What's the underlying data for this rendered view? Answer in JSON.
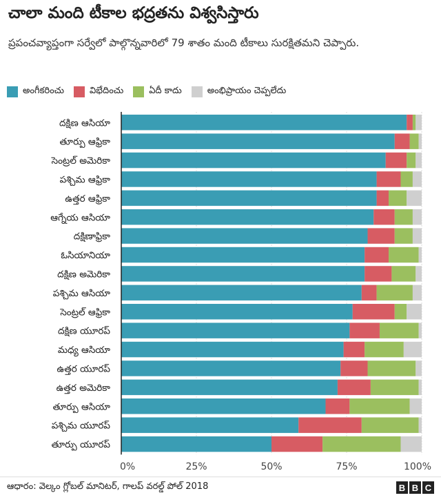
{
  "header": {
    "title": "చాలా మంది టీకాల భద్రతను విశ్వసిస్తారు",
    "subtitle": "ప్రపంచవ్యాప్తంగా సర్వేలో పాల్గొన్నవారిలో 79 శాతం మంది టీకాలు సురక్షితమని చెప్పారు."
  },
  "footer": {
    "source": "ఆధారం: వెల్కం గ్లోబల్ మానిటర్, గాలప్ వరల్డ్ పోల్ 2018",
    "logo_letters": [
      "B",
      "B",
      "C"
    ]
  },
  "chart_data": {
    "type": "bar",
    "orientation": "horizontal",
    "stacked": true,
    "x_ticks": [
      "0%",
      "25%",
      "50%",
      "75%",
      "100%"
    ],
    "xlim": [
      0,
      100
    ],
    "grid": true,
    "legend_position": "top",
    "categories": [
      "దక్షిణ ఆసియా",
      "తూర్పు ఆఫ్రికా",
      "సెంట్రల్ అమెరికా",
      "పశ్చిమ ఆఫ్రికా",
      "ఉత్తర ఆఫ్రికా",
      "ఆగ్నేయ ఆసియా",
      "దక్షిణాఫ్రికా",
      "ఓసియానియా",
      "దక్షిణ అమెరికా",
      "పశ్చిమ ఆసియా",
      "సెంట్రల్ ఆఫ్రికా",
      "దక్షిణ యూరప్",
      "మధ్య ఆసియా",
      "ఉత్తర యూరప్",
      "ఉత్తర అమెరికా",
      "తూర్పు ఆసియా",
      "పశ్చిమ యూరప్",
      "తూర్పు యూరప్"
    ],
    "series": [
      {
        "name": "అంగీకరించు",
        "color": "#3a9db4",
        "values": [
          95,
          91,
          88,
          85,
          85,
          84,
          82,
          81,
          81,
          80,
          77,
          76,
          74,
          73,
          72,
          68,
          59,
          50
        ]
      },
      {
        "name": "విభేదించు",
        "color": "#d75c63",
        "values": [
          2,
          5,
          7,
          8,
          4,
          7,
          9,
          8,
          9,
          5,
          14,
          10,
          7,
          9,
          11,
          8,
          21,
          17
        ]
      },
      {
        "name": "ఏదీ కాదు",
        "color": "#9bbf5f",
        "values": [
          1,
          3,
          3,
          4,
          6,
          6,
          6,
          10,
          8,
          12,
          4,
          13,
          13,
          16,
          16,
          20,
          19,
          26
        ]
      },
      {
        "name": "అంభిప్రాయం చెప్పలేదు",
        "color": "#cfcfcf",
        "values": [
          2,
          1,
          2,
          3,
          5,
          3,
          3,
          1,
          2,
          3,
          5,
          1,
          6,
          2,
          1,
          4,
          1,
          7
        ]
      }
    ]
  }
}
